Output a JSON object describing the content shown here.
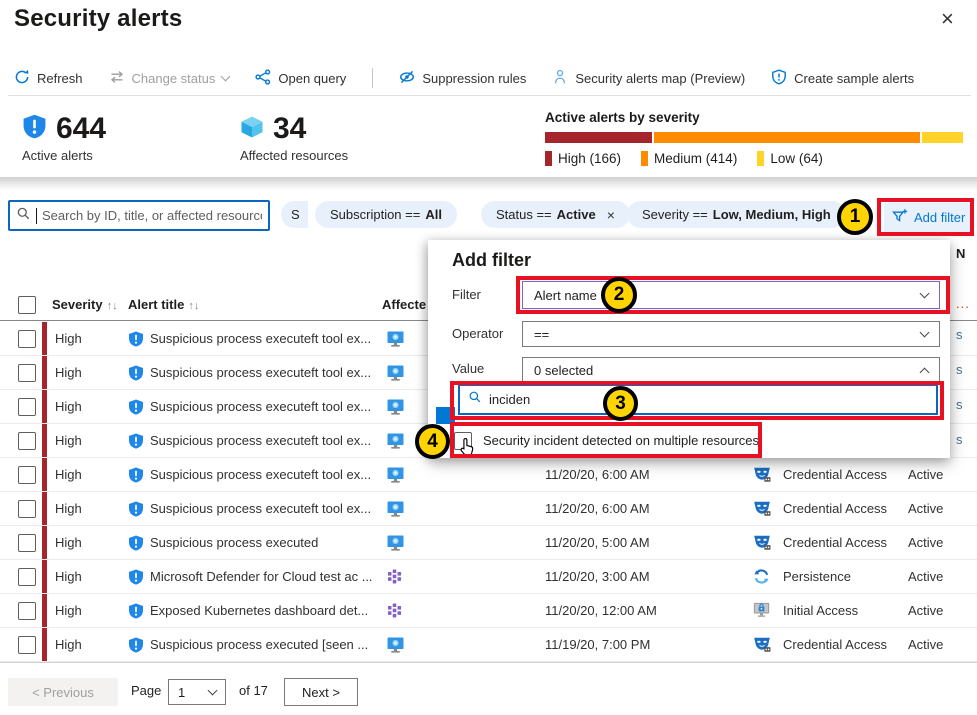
{
  "colors": {
    "accent": "#0078d4",
    "annotation_red": "#e81123",
    "badge_yellow": "#ffd400",
    "severity_high": "#a4262c",
    "severity_medium": "#ff8c00",
    "severity_low": "#ffd327",
    "filter_dropdown_purple": "#8661c5"
  },
  "page": {
    "title": "Security alerts",
    "close_icon": "×"
  },
  "toolbar": {
    "items": [
      {
        "label": "Refresh",
        "icon": "refresh-icon",
        "disabled": false
      },
      {
        "label": "Change status",
        "icon": "change-status-icon",
        "disabled": true,
        "has_chevron": true
      },
      {
        "label": "Open query",
        "icon": "open-query-icon",
        "disabled": false
      },
      {
        "label": "Suppression rules",
        "icon": "suppression-rules-icon",
        "disabled": false
      },
      {
        "label": "Security alerts map (Preview)",
        "icon": "map-person-icon",
        "disabled": false
      },
      {
        "label": "Create sample alerts",
        "icon": "shield-outline-icon",
        "disabled": false
      }
    ]
  },
  "stats": {
    "active_alerts": {
      "value": "644",
      "label": "Active alerts",
      "icon": "shield-alert-icon"
    },
    "affected_resources": {
      "value": "34",
      "label": "Affected resources",
      "icon": "cube-icon"
    }
  },
  "chart_data": {
    "type": "bar",
    "title": "Active alerts by severity",
    "series": [
      {
        "name": "High",
        "value": 166,
        "color": "#a4262c"
      },
      {
        "name": "Medium",
        "value": 414,
        "color": "#ff8c00"
      },
      {
        "name": "Low",
        "value": 64,
        "color": "#ffd327"
      }
    ],
    "legend": [
      "High (166)",
      "Medium (414)",
      "Low (64)"
    ],
    "total": 644
  },
  "filter_bar": {
    "search_placeholder": "Search by ID, title, or affected resource",
    "pill_fragment": "S",
    "pills": [
      {
        "prefix": "Subscription ==",
        "value": "All"
      },
      {
        "prefix": "Status ==",
        "value": "Active",
        "close": "×"
      },
      {
        "prefix": "Severity ==",
        "value": "Low, Medium, High"
      }
    ],
    "add_filter_label": "Add filter"
  },
  "popup": {
    "title": "Add filter",
    "filter_label": "Filter",
    "filter_value": "Alert name",
    "operator_label": "Operator",
    "operator_value": "==",
    "value_label": "Value",
    "value_value": "0 selected",
    "search_value": "inciden",
    "option_label": "Security incident detected on multiple resources"
  },
  "annotations": {
    "badges": [
      "1",
      "2",
      "3",
      "4"
    ]
  },
  "table": {
    "headers": {
      "severity": "Severity",
      "alert_title": "Alert title",
      "affected": "Affecte",
      "sort_glyphs": "↑↓"
    },
    "rows": [
      {
        "severity": "High",
        "title": "Suspicious process executeft tool ex...",
        "resource": "vm",
        "time": "",
        "tactic": "",
        "tactic_icon": "",
        "status": ""
      },
      {
        "severity": "High",
        "title": "Suspicious process executeft tool ex...",
        "resource": "vm",
        "time": "",
        "tactic": "",
        "tactic_icon": "",
        "status": ""
      },
      {
        "severity": "High",
        "title": "Suspicious process executeft tool ex...",
        "resource": "vm",
        "time": "",
        "tactic": "",
        "tactic_icon": "",
        "status": ""
      },
      {
        "severity": "High",
        "title": "Suspicious process executeft tool ex...",
        "resource": "vm",
        "time": "",
        "tactic": "",
        "tactic_icon": "",
        "status": ""
      },
      {
        "severity": "High",
        "title": "Suspicious process executeft tool ex...",
        "resource": "vm",
        "time": "11/20/20, 6:00 AM",
        "tactic": "Credential Access",
        "tactic_icon": "mask",
        "status": "Active"
      },
      {
        "severity": "High",
        "title": "Suspicious process executeft tool ex...",
        "resource": "vm",
        "time": "11/20/20, 6:00 AM",
        "tactic": "Credential Access",
        "tactic_icon": "mask",
        "status": "Active"
      },
      {
        "severity": "High",
        "title": "Suspicious process executed",
        "resource": "vm",
        "time": "11/20/20, 5:00 AM",
        "tactic": "Credential Access",
        "tactic_icon": "mask",
        "status": "Active"
      },
      {
        "severity": "High",
        "title": "Microsoft Defender for Cloud test ac ...",
        "resource": "k8s",
        "time": "11/20/20, 3:00 AM",
        "tactic": "Persistence",
        "tactic_icon": "persistence",
        "status": "Active"
      },
      {
        "severity": "High",
        "title": "Exposed Kubernetes dashboard det...",
        "resource": "k8s",
        "time": "11/20/20, 12:00 AM",
        "tactic": "Initial Access",
        "tactic_icon": "initial-access",
        "status": "Active"
      },
      {
        "severity": "High",
        "title": "Suspicious process executed [seen ...",
        "resource": "vm",
        "time": "11/19/20, 7:00 PM",
        "tactic": "Credential Access",
        "tactic_icon": "mask",
        "status": "Active"
      }
    ]
  },
  "pagination": {
    "previous": "< Previous",
    "page_label": "Page",
    "page_value": "1",
    "of_label": "of  17",
    "next": "Next >"
  },
  "edge_fragments": [
    "N",
    "...",
    "s",
    "s",
    "s",
    "s"
  ]
}
